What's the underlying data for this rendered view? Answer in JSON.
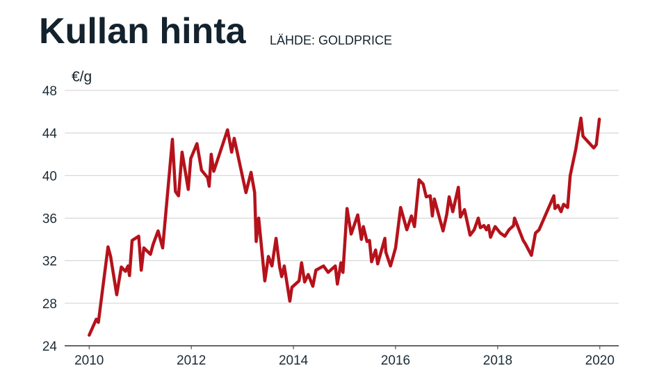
{
  "chart_data": {
    "type": "line",
    "title": "Kullan hinta",
    "subtitle": "LÄHDE: GOLDPRICE",
    "ylabel": "€/g",
    "color": "#b5121b",
    "grid": true,
    "xlim": [
      2009.52,
      2020.37
    ],
    "xticks": [
      2010,
      2012,
      2014,
      2016,
      2018,
      2020
    ],
    "ylim": [
      24,
      48
    ],
    "yticks": [
      24,
      28,
      32,
      36,
      40,
      44,
      48
    ],
    "x": [
      2010.0,
      2010.14,
      2010.18,
      2010.37,
      2010.42,
      2010.54,
      2010.63,
      2010.71,
      2010.76,
      2010.79,
      2010.84,
      2010.97,
      2011.02,
      2011.07,
      2011.2,
      2011.25,
      2011.35,
      2011.44,
      2011.63,
      2011.69,
      2011.75,
      2011.82,
      2011.94,
      2011.99,
      2012.11,
      2012.2,
      2012.32,
      2012.35,
      2012.39,
      2012.44,
      2012.71,
      2012.79,
      2012.84,
      2013.07,
      2013.17,
      2013.24,
      2013.27,
      2013.32,
      2013.44,
      2013.51,
      2013.58,
      2013.66,
      2013.73,
      2013.77,
      2013.82,
      2013.93,
      2013.97,
      2014.11,
      2014.16,
      2014.22,
      2014.29,
      2014.38,
      2014.44,
      2014.59,
      2014.68,
      2014.82,
      2014.86,
      2014.93,
      2014.97,
      2015.05,
      2015.13,
      2015.26,
      2015.33,
      2015.37,
      2015.44,
      2015.49,
      2015.53,
      2015.61,
      2015.65,
      2015.79,
      2015.81,
      2015.9,
      2016.0,
      2016.1,
      2016.22,
      2016.31,
      2016.37,
      2016.46,
      2016.54,
      2016.6,
      2016.68,
      2016.72,
      2016.76,
      2016.93,
      2017.0,
      2017.05,
      2017.12,
      2017.23,
      2017.27,
      2017.35,
      2017.46,
      2017.54,
      2017.62,
      2017.66,
      2017.73,
      2017.78,
      2017.82,
      2017.86,
      2017.95,
      2018.05,
      2018.14,
      2018.22,
      2018.31,
      2018.33,
      2018.5,
      2018.54,
      2018.66,
      2018.74,
      2018.81,
      2019.1,
      2019.12,
      2019.18,
      2019.24,
      2019.29,
      2019.37,
      2019.42,
      2019.53,
      2019.63,
      2019.67,
      2019.84,
      2019.88,
      2019.93,
      2019.99
    ],
    "values": [
      25.0,
      26.5,
      26.2,
      33.3,
      32.4,
      28.8,
      31.4,
      31.0,
      31.5,
      30.6,
      33.9,
      34.3,
      31.1,
      33.2,
      32.6,
      33.5,
      34.8,
      33.2,
      43.4,
      38.5,
      38.1,
      42.2,
      38.7,
      41.6,
      43.0,
      40.5,
      39.8,
      39.0,
      42.0,
      40.4,
      44.3,
      42.2,
      43.5,
      38.4,
      40.3,
      38.4,
      33.8,
      36.0,
      30.1,
      32.4,
      31.5,
      34.1,
      31.4,
      30.5,
      31.5,
      28.2,
      29.5,
      30.1,
      31.8,
      30.0,
      30.7,
      29.6,
      31.1,
      31.5,
      30.9,
      31.5,
      29.8,
      31.8,
      30.9,
      36.9,
      34.5,
      36.3,
      34.0,
      35.2,
      33.8,
      33.9,
      31.9,
      33.0,
      31.7,
      34.1,
      32.8,
      31.5,
      33.2,
      37.0,
      34.9,
      36.2,
      35.2,
      39.6,
      39.2,
      38.0,
      38.1,
      36.2,
      37.8,
      34.8,
      36.3,
      38.0,
      36.6,
      38.9,
      36.1,
      36.8,
      34.4,
      34.9,
      36.0,
      35.1,
      35.3,
      34.9,
      35.3,
      34.2,
      35.2,
      34.6,
      34.3,
      34.9,
      35.3,
      36.0,
      33.9,
      33.6,
      32.5,
      34.6,
      34.9,
      38.1,
      36.9,
      37.2,
      36.6,
      37.3,
      37.0,
      40.0,
      42.5,
      45.4,
      43.7,
      42.8,
      42.6,
      42.9,
      45.3
    ]
  }
}
